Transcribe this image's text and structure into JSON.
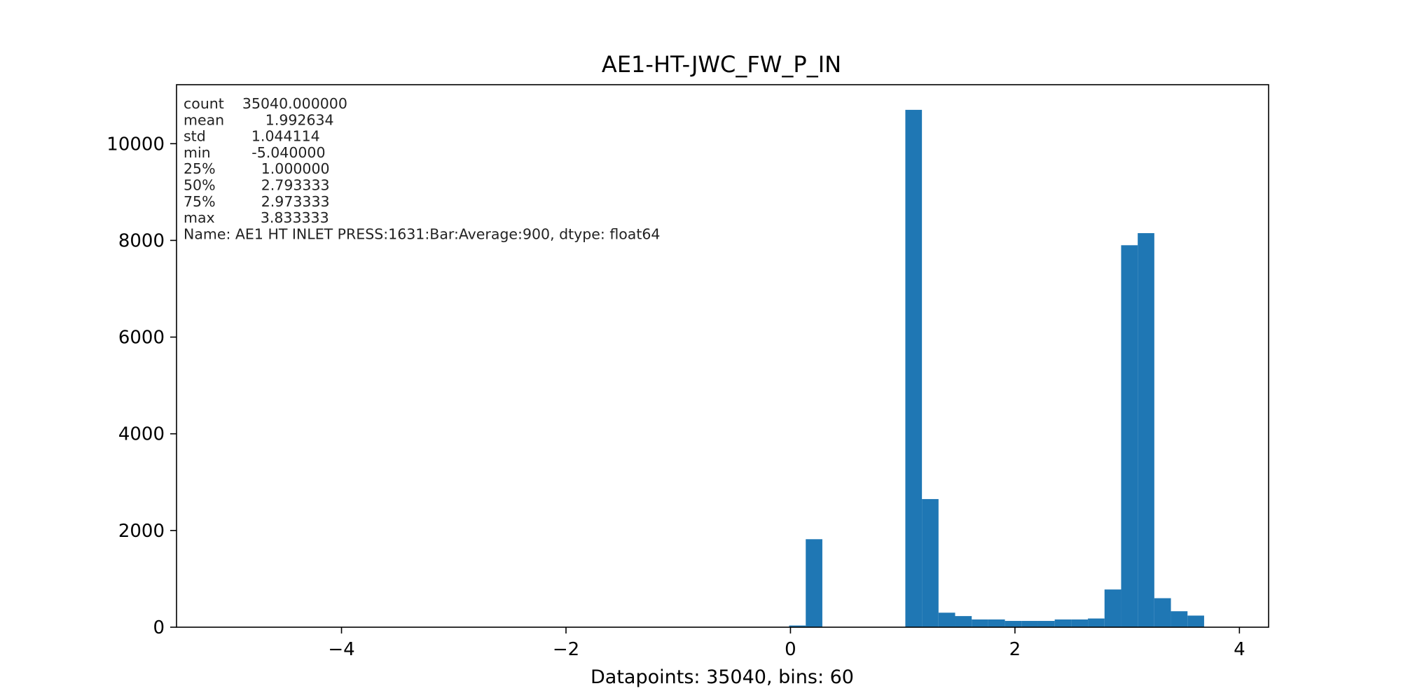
{
  "chart_data": {
    "type": "bar",
    "title": "AE1-HT-JWC_FW_P_IN",
    "xlabel": "Datapoints: 35040, bins: 60",
    "ylabel": "",
    "xlim": [
      -5.47,
      4.26
    ],
    "ylim": [
      0,
      11220
    ],
    "xticks": [
      -4,
      -2,
      0,
      2,
      4
    ],
    "xtick_labels": [
      "−4",
      "−2",
      "0",
      "2",
      "4"
    ],
    "yticks": [
      0,
      2000,
      4000,
      6000,
      8000,
      10000
    ],
    "ytick_labels": [
      "0",
      "2000",
      "4000",
      "6000",
      "8000",
      "10000"
    ],
    "grid": false,
    "bar_color": "#1f77b4",
    "bin_min": -5.04,
    "bin_max": 3.833333,
    "bins": 60,
    "counts": [
      0,
      0,
      0,
      0,
      0,
      0,
      0,
      0,
      0,
      0,
      0,
      0,
      0,
      0,
      0,
      0,
      0,
      0,
      0,
      0,
      0,
      0,
      0,
      0,
      0,
      0,
      0,
      0,
      0,
      0,
      0,
      0,
      0,
      0,
      35,
      1820,
      0,
      0,
      0,
      0,
      0,
      10700,
      2650,
      300,
      230,
      160,
      160,
      130,
      130,
      130,
      160,
      160,
      180,
      780,
      7900,
      8150,
      600,
      330,
      240,
      0
    ],
    "stats_lines": [
      "count    35040.000000",
      "mean         1.992634",
      "std          1.044114",
      "min         -5.040000",
      "25%          1.000000",
      "50%          2.793333",
      "75%          2.973333",
      "max          3.833333",
      "Name: AE1 HT INLET PRESS:1631:Bar:Average:900, dtype: float64"
    ]
  }
}
